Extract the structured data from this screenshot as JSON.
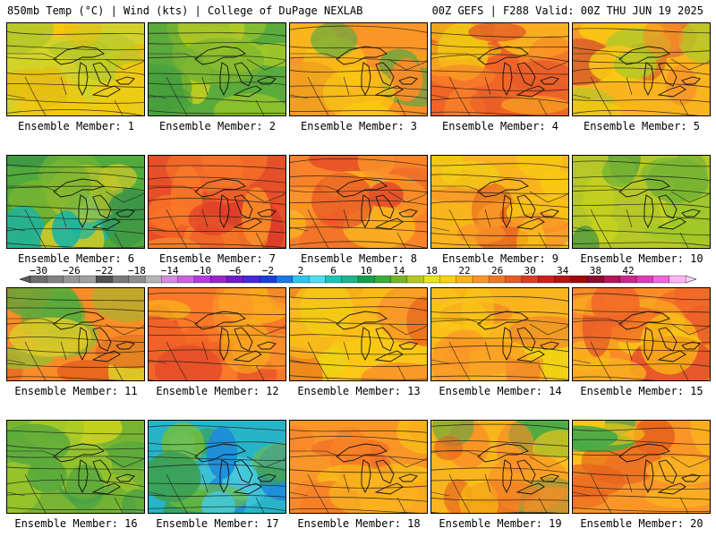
{
  "header": {
    "left": "850mb Temp (°C) | Wind (kts) | College of DuPage NEXLAB",
    "right": "00Z GEFS | F288 Valid: 00Z THU JUN 19 2025"
  },
  "member_label_prefix": "Ensemble Member: ",
  "members": [
    {
      "n": "1",
      "palette": [
        "#d2d22a",
        "#f0c814",
        "#e6be14",
        "#b4c828",
        "#fac80a"
      ]
    },
    {
      "n": "2",
      "palette": [
        "#5aaa3c",
        "#46a03c",
        "#78b432",
        "#a0c828",
        "#c8d21e"
      ]
    },
    {
      "n": "3",
      "palette": [
        "#fa9628",
        "#f0a01e",
        "#fac814",
        "#fa8c28",
        "#46aa46"
      ]
    },
    {
      "n": "4",
      "palette": [
        "#f06428",
        "#fa8228",
        "#e65a28",
        "#fab41e",
        "#f0c814"
      ]
    },
    {
      "n": "5",
      "palette": [
        "#fab41e",
        "#fac814",
        "#b4c828",
        "#fa8c28",
        "#dc6428"
      ]
    },
    {
      "n": "6",
      "palette": [
        "#50aa3c",
        "#78b432",
        "#1eb4a0",
        "#c8c828",
        "#3c9646"
      ]
    },
    {
      "n": "7",
      "palette": [
        "#e65028",
        "#f06428",
        "#fa7828",
        "#dc3c28",
        "#fa8c28"
      ]
    },
    {
      "n": "8",
      "palette": [
        "#fa8228",
        "#fa9628",
        "#e65028",
        "#f06e28",
        "#fab41e"
      ]
    },
    {
      "n": "9",
      "palette": [
        "#fab41e",
        "#fac814",
        "#fa9628",
        "#f0d214",
        "#e6641e"
      ]
    },
    {
      "n": "10",
      "palette": [
        "#b4c828",
        "#a0c828",
        "#78b432",
        "#c8d21e",
        "#5aa03c"
      ]
    },
    {
      "n": "11",
      "palette": [
        "#fa8c28",
        "#e6641e",
        "#dcc828",
        "#96be32",
        "#5aaa3c"
      ]
    },
    {
      "n": "12",
      "palette": [
        "#fa7828",
        "#f06428",
        "#e65028",
        "#fa9628",
        "#fab41e"
      ]
    },
    {
      "n": "13",
      "palette": [
        "#fac814",
        "#fab41e",
        "#f0d214",
        "#fa9628",
        "#e6641e"
      ]
    },
    {
      "n": "14",
      "palette": [
        "#fab41e",
        "#fac814",
        "#fa9628",
        "#f0d214",
        "#f08228"
      ]
    },
    {
      "n": "15",
      "palette": [
        "#fa8c28",
        "#f06428",
        "#fab41e",
        "#e65028",
        "#fac814"
      ]
    },
    {
      "n": "16",
      "palette": [
        "#78b432",
        "#a0c828",
        "#5aaa3c",
        "#c8d21e",
        "#46a046"
      ]
    },
    {
      "n": "17",
      "palette": [
        "#28b4c8",
        "#46c8dc",
        "#3ca050",
        "#1e8cdc",
        "#78be32"
      ]
    },
    {
      "n": "18",
      "palette": [
        "#fa9628",
        "#fab41e",
        "#fa8228",
        "#fac814",
        "#f06e28"
      ]
    },
    {
      "n": "19",
      "palette": [
        "#fab41e",
        "#fa8c28",
        "#e6641e",
        "#fac814",
        "#46aa46"
      ]
    },
    {
      "n": "20",
      "palette": [
        "#fa9628",
        "#fab41e",
        "#e6641e",
        "#fac814",
        "#46aa46"
      ]
    }
  ],
  "colorbar": {
    "labels": [
      "-30",
      "-26",
      "-22",
      "-18",
      "-14",
      "-10",
      "-6",
      "-2",
      "2",
      "6",
      "10",
      "14",
      "18",
      "22",
      "26",
      "30",
      "34",
      "38",
      "42"
    ],
    "colors": [
      "#6e6e6e",
      "#828282",
      "#969696",
      "#a0a0a0",
      "#505050",
      "#7a7a7a",
      "#8c8c8c",
      "#b4b4b4",
      "#d28cdc",
      "#c864dc",
      "#b43cdc",
      "#9628c8",
      "#6e1ec8",
      "#4628dc",
      "#1e3cdc",
      "#1e78e6",
      "#28c8f0",
      "#50dcf0",
      "#14c8b4",
      "#1eb48c",
      "#14a050",
      "#3caa3c",
      "#78b428",
      "#b4c81e",
      "#e6e614",
      "#fad20a",
      "#fab414",
      "#fa9628",
      "#f07828",
      "#e65a28",
      "#dc3c28",
      "#d21e1e",
      "#b41414",
      "#a00a0a",
      "#8c0a32",
      "#b4145a",
      "#c8288c",
      "#dc3cb4",
      "#f064dc",
      "#fab4f0"
    ]
  }
}
